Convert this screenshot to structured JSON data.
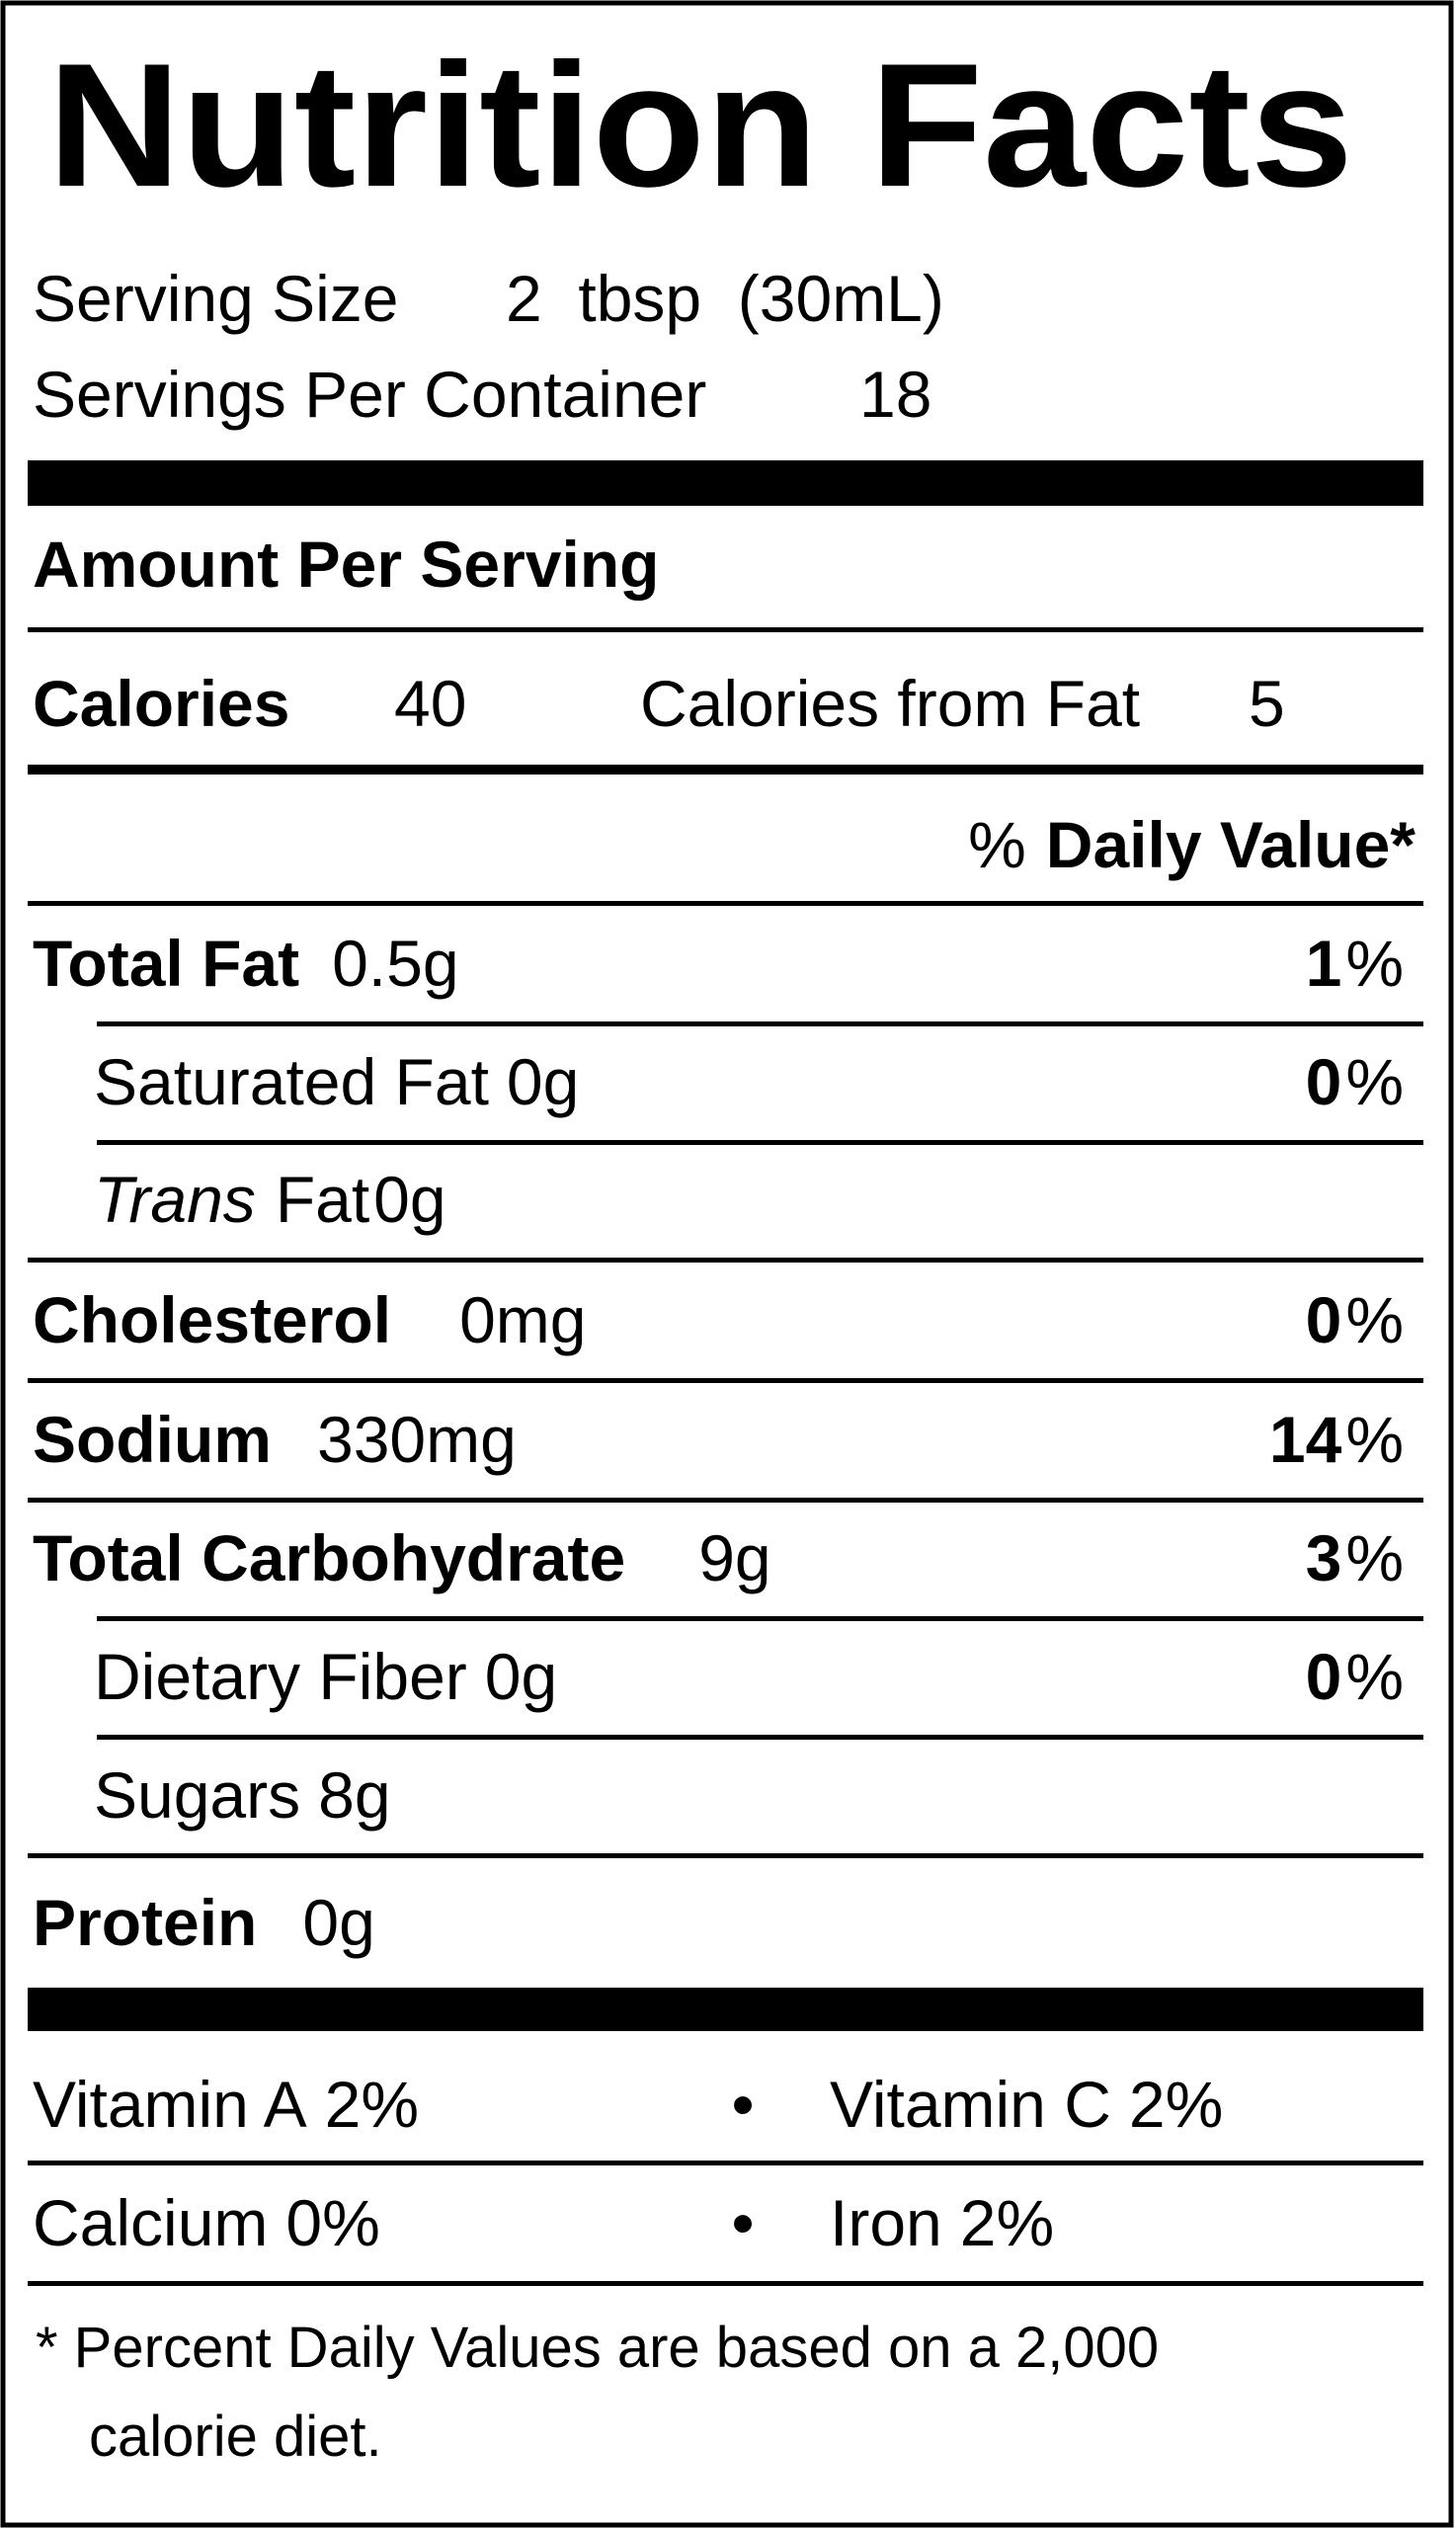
{
  "title": "Nutrition Facts",
  "serving_size": {
    "label": "Serving Size",
    "value": "2  tbsp  (30mL)"
  },
  "servings_per_container": {
    "label": "Servings Per Container",
    "value": "18"
  },
  "amount_per_serving": "Amount Per Serving",
  "calories": {
    "label": "Calories",
    "value": "40"
  },
  "calories_from_fat": {
    "label": "Calories from Fat",
    "value": "5"
  },
  "daily_value_header": {
    "symbol": "%",
    "label": "Daily Value*"
  },
  "nutrients": [
    {
      "label": "Total Fat",
      "amount": "0.5g",
      "dv": "1",
      "unit": "%",
      "indent": false
    },
    {
      "label": "Saturated Fat",
      "amount": "0g",
      "dv": "0",
      "unit": "%",
      "indent": true
    },
    {
      "label_italic": "Trans",
      "label": "Fat",
      "amount": "0g",
      "indent": true
    },
    {
      "label": "Cholesterol",
      "amount": "0mg",
      "dv": "0",
      "unit": "%",
      "indent": false
    },
    {
      "label": "Sodium",
      "amount": "330mg",
      "dv": "14",
      "unit": "%",
      "indent": false
    },
    {
      "label": "Total Carbohydrate",
      "amount": "9g",
      "dv": "3",
      "unit": "%",
      "indent": false
    },
    {
      "label": "Dietary Fiber",
      "amount": "0g",
      "dv": "0",
      "unit": "%",
      "indent": true
    },
    {
      "label": "Sugars",
      "amount": "8g",
      "indent": true
    },
    {
      "label": "Protein",
      "amount": "0g",
      "indent": false
    }
  ],
  "vitamins": [
    [
      {
        "name": "Vitamin A",
        "value": "2%"
      },
      {
        "name": "Vitamin C",
        "value": "2%"
      }
    ],
    [
      {
        "name": "Calcium",
        "value": "0%"
      },
      {
        "name": "Iron",
        "value": "2%"
      }
    ]
  ],
  "separator": "•",
  "footnote": [
    "* Percent Daily Values are based on a 2,000",
    "calorie diet."
  ]
}
